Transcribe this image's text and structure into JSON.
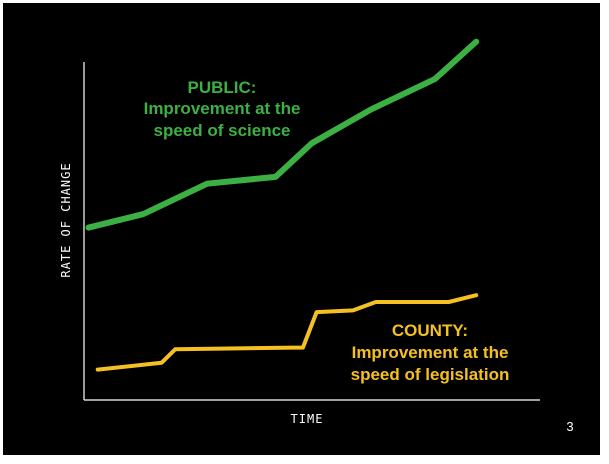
{
  "slide": {
    "page_number": "3"
  },
  "colors": {
    "background": "#000000",
    "public_line": "#3cb043",
    "public_text": "#3cb043",
    "county_line": "#f5c022",
    "county_text": "#f5c022",
    "axis": "#ffffff"
  },
  "chart_data": {
    "type": "line",
    "title": "",
    "xlabel": "TIME",
    "ylabel": "RATE OF CHANGE",
    "grid": false,
    "legend": "none",
    "xlim": [
      0,
      100
    ],
    "ylim": [
      0,
      100
    ],
    "series": [
      {
        "name": "PUBLIC",
        "color": "#3cb043",
        "x": [
          1,
          13,
          27,
          42,
          50,
          63,
          77,
          86
        ],
        "y": [
          51,
          55,
          64,
          66,
          76,
          86,
          95,
          106
        ],
        "annotation_lines": [
          "PUBLIC:",
          "Improvement at the",
          "speed of science"
        ]
      },
      {
        "name": "COUNTY",
        "color": "#f5c022",
        "x": [
          3,
          17,
          20,
          46,
          48,
          51,
          59,
          64,
          80,
          86
        ],
        "y": [
          9,
          11,
          15,
          15.5,
          15.5,
          26,
          26.5,
          29,
          29,
          31
        ],
        "annotation_lines": [
          "COUNTY:",
          "Improvement at the",
          "speed of legislation"
        ]
      }
    ]
  }
}
